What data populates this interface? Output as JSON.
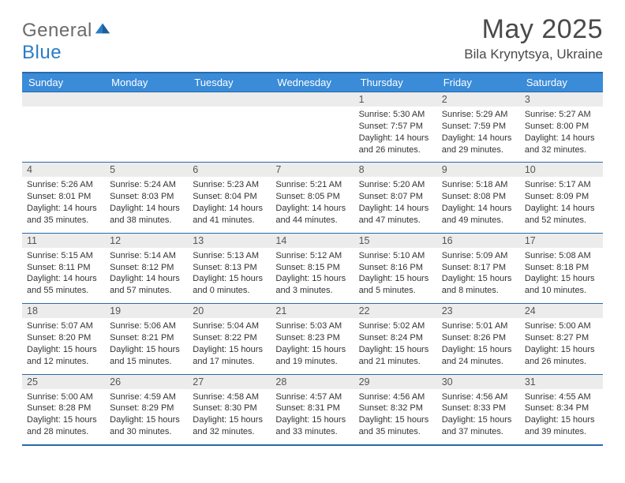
{
  "brand": {
    "part1": "General",
    "part2": "Blue"
  },
  "title": "May 2025",
  "location": "Bila Krynytsya, Ukraine",
  "colors": {
    "header_bg": "#3a8bd8",
    "header_border": "#2a6aa8",
    "daynum_bg": "#ececec",
    "text": "#333333",
    "logo_gray": "#6b6b6b",
    "logo_blue": "#2a7cc7"
  },
  "typography": {
    "title_fontsize": 34,
    "location_fontsize": 17,
    "dayheader_fontsize": 13,
    "cell_fontsize": 11
  },
  "day_headers": [
    "Sunday",
    "Monday",
    "Tuesday",
    "Wednesday",
    "Thursday",
    "Friday",
    "Saturday"
  ],
  "weeks": [
    [
      {
        "empty": true
      },
      {
        "empty": true
      },
      {
        "empty": true
      },
      {
        "empty": true
      },
      {
        "n": "1",
        "sunrise": "Sunrise: 5:30 AM",
        "sunset": "Sunset: 7:57 PM",
        "dl1": "Daylight: 14 hours",
        "dl2": "and 26 minutes."
      },
      {
        "n": "2",
        "sunrise": "Sunrise: 5:29 AM",
        "sunset": "Sunset: 7:59 PM",
        "dl1": "Daylight: 14 hours",
        "dl2": "and 29 minutes."
      },
      {
        "n": "3",
        "sunrise": "Sunrise: 5:27 AM",
        "sunset": "Sunset: 8:00 PM",
        "dl1": "Daylight: 14 hours",
        "dl2": "and 32 minutes."
      }
    ],
    [
      {
        "n": "4",
        "sunrise": "Sunrise: 5:26 AM",
        "sunset": "Sunset: 8:01 PM",
        "dl1": "Daylight: 14 hours",
        "dl2": "and 35 minutes."
      },
      {
        "n": "5",
        "sunrise": "Sunrise: 5:24 AM",
        "sunset": "Sunset: 8:03 PM",
        "dl1": "Daylight: 14 hours",
        "dl2": "and 38 minutes."
      },
      {
        "n": "6",
        "sunrise": "Sunrise: 5:23 AM",
        "sunset": "Sunset: 8:04 PM",
        "dl1": "Daylight: 14 hours",
        "dl2": "and 41 minutes."
      },
      {
        "n": "7",
        "sunrise": "Sunrise: 5:21 AM",
        "sunset": "Sunset: 8:05 PM",
        "dl1": "Daylight: 14 hours",
        "dl2": "and 44 minutes."
      },
      {
        "n": "8",
        "sunrise": "Sunrise: 5:20 AM",
        "sunset": "Sunset: 8:07 PM",
        "dl1": "Daylight: 14 hours",
        "dl2": "and 47 minutes."
      },
      {
        "n": "9",
        "sunrise": "Sunrise: 5:18 AM",
        "sunset": "Sunset: 8:08 PM",
        "dl1": "Daylight: 14 hours",
        "dl2": "and 49 minutes."
      },
      {
        "n": "10",
        "sunrise": "Sunrise: 5:17 AM",
        "sunset": "Sunset: 8:09 PM",
        "dl1": "Daylight: 14 hours",
        "dl2": "and 52 minutes."
      }
    ],
    [
      {
        "n": "11",
        "sunrise": "Sunrise: 5:15 AM",
        "sunset": "Sunset: 8:11 PM",
        "dl1": "Daylight: 14 hours",
        "dl2": "and 55 minutes."
      },
      {
        "n": "12",
        "sunrise": "Sunrise: 5:14 AM",
        "sunset": "Sunset: 8:12 PM",
        "dl1": "Daylight: 14 hours",
        "dl2": "and 57 minutes."
      },
      {
        "n": "13",
        "sunrise": "Sunrise: 5:13 AM",
        "sunset": "Sunset: 8:13 PM",
        "dl1": "Daylight: 15 hours",
        "dl2": "and 0 minutes."
      },
      {
        "n": "14",
        "sunrise": "Sunrise: 5:12 AM",
        "sunset": "Sunset: 8:15 PM",
        "dl1": "Daylight: 15 hours",
        "dl2": "and 3 minutes."
      },
      {
        "n": "15",
        "sunrise": "Sunrise: 5:10 AM",
        "sunset": "Sunset: 8:16 PM",
        "dl1": "Daylight: 15 hours",
        "dl2": "and 5 minutes."
      },
      {
        "n": "16",
        "sunrise": "Sunrise: 5:09 AM",
        "sunset": "Sunset: 8:17 PM",
        "dl1": "Daylight: 15 hours",
        "dl2": "and 8 minutes."
      },
      {
        "n": "17",
        "sunrise": "Sunrise: 5:08 AM",
        "sunset": "Sunset: 8:18 PM",
        "dl1": "Daylight: 15 hours",
        "dl2": "and 10 minutes."
      }
    ],
    [
      {
        "n": "18",
        "sunrise": "Sunrise: 5:07 AM",
        "sunset": "Sunset: 8:20 PM",
        "dl1": "Daylight: 15 hours",
        "dl2": "and 12 minutes."
      },
      {
        "n": "19",
        "sunrise": "Sunrise: 5:06 AM",
        "sunset": "Sunset: 8:21 PM",
        "dl1": "Daylight: 15 hours",
        "dl2": "and 15 minutes."
      },
      {
        "n": "20",
        "sunrise": "Sunrise: 5:04 AM",
        "sunset": "Sunset: 8:22 PM",
        "dl1": "Daylight: 15 hours",
        "dl2": "and 17 minutes."
      },
      {
        "n": "21",
        "sunrise": "Sunrise: 5:03 AM",
        "sunset": "Sunset: 8:23 PM",
        "dl1": "Daylight: 15 hours",
        "dl2": "and 19 minutes."
      },
      {
        "n": "22",
        "sunrise": "Sunrise: 5:02 AM",
        "sunset": "Sunset: 8:24 PM",
        "dl1": "Daylight: 15 hours",
        "dl2": "and 21 minutes."
      },
      {
        "n": "23",
        "sunrise": "Sunrise: 5:01 AM",
        "sunset": "Sunset: 8:26 PM",
        "dl1": "Daylight: 15 hours",
        "dl2": "and 24 minutes."
      },
      {
        "n": "24",
        "sunrise": "Sunrise: 5:00 AM",
        "sunset": "Sunset: 8:27 PM",
        "dl1": "Daylight: 15 hours",
        "dl2": "and 26 minutes."
      }
    ],
    [
      {
        "n": "25",
        "sunrise": "Sunrise: 5:00 AM",
        "sunset": "Sunset: 8:28 PM",
        "dl1": "Daylight: 15 hours",
        "dl2": "and 28 minutes."
      },
      {
        "n": "26",
        "sunrise": "Sunrise: 4:59 AM",
        "sunset": "Sunset: 8:29 PM",
        "dl1": "Daylight: 15 hours",
        "dl2": "and 30 minutes."
      },
      {
        "n": "27",
        "sunrise": "Sunrise: 4:58 AM",
        "sunset": "Sunset: 8:30 PM",
        "dl1": "Daylight: 15 hours",
        "dl2": "and 32 minutes."
      },
      {
        "n": "28",
        "sunrise": "Sunrise: 4:57 AM",
        "sunset": "Sunset: 8:31 PM",
        "dl1": "Daylight: 15 hours",
        "dl2": "and 33 minutes."
      },
      {
        "n": "29",
        "sunrise": "Sunrise: 4:56 AM",
        "sunset": "Sunset: 8:32 PM",
        "dl1": "Daylight: 15 hours",
        "dl2": "and 35 minutes."
      },
      {
        "n": "30",
        "sunrise": "Sunrise: 4:56 AM",
        "sunset": "Sunset: 8:33 PM",
        "dl1": "Daylight: 15 hours",
        "dl2": "and 37 minutes."
      },
      {
        "n": "31",
        "sunrise": "Sunrise: 4:55 AM",
        "sunset": "Sunset: 8:34 PM",
        "dl1": "Daylight: 15 hours",
        "dl2": "and 39 minutes."
      }
    ]
  ]
}
